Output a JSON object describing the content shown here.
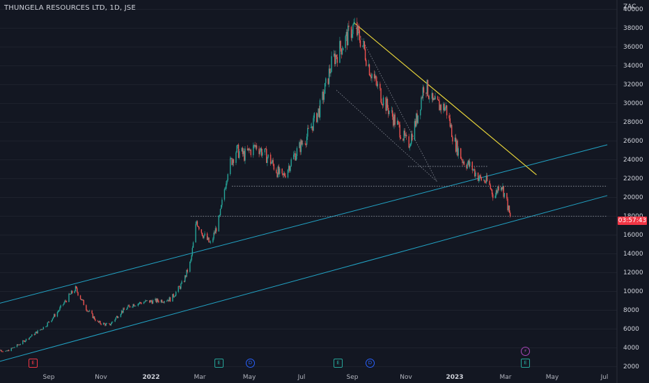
{
  "header": {
    "title": "THUNGELA RESOURCES LTD, 1D, JSE",
    "currency": "ZAC"
  },
  "colors": {
    "background": "#131722",
    "up": "#26a69a",
    "down": "#ef5350",
    "channel": "#22a6c8",
    "trendline": "#e6d33a",
    "text": "#d1d4dc",
    "price_tag": "#f23645"
  },
  "price_axis": {
    "ticks": [
      "40000",
      "38000",
      "36000",
      "34000",
      "32000",
      "30000",
      "28000",
      "26000",
      "24000",
      "22000",
      "20000",
      "18000",
      "16000",
      "14000",
      "12000",
      "10000",
      "8000",
      "6000",
      "4000",
      "2000"
    ]
  },
  "time_axis": {
    "ticks": [
      {
        "label": "Sep",
        "bold": false
      },
      {
        "label": "Nov",
        "bold": false
      },
      {
        "label": "2022",
        "bold": true
      },
      {
        "label": "Mar",
        "bold": false
      },
      {
        "label": "May",
        "bold": false
      },
      {
        "label": "Jul",
        "bold": false
      },
      {
        "label": "Sep",
        "bold": false
      },
      {
        "label": "Nov",
        "bold": false
      },
      {
        "label": "2023",
        "bold": true
      },
      {
        "label": "Mar",
        "bold": false
      },
      {
        "label": "May",
        "bold": false
      },
      {
        "label": "Jul",
        "bold": false
      }
    ]
  },
  "price_tag": {
    "countdown": "03:57:43"
  },
  "event_markers": [
    {
      "type": "earnings",
      "label": "E",
      "color": "#f23645"
    },
    {
      "type": "earnings",
      "label": "E",
      "color": "#26a69a"
    },
    {
      "type": "dividend",
      "label": "D",
      "color": "#2962ff"
    },
    {
      "type": "earnings",
      "label": "E",
      "color": "#26a69a"
    },
    {
      "type": "dividend",
      "label": "D",
      "color": "#2962ff"
    },
    {
      "type": "split",
      "label": "⚡",
      "color": "#ab47bc"
    },
    {
      "type": "earnings",
      "label": "E",
      "color": "#26a69a"
    }
  ],
  "chart_data": {
    "type": "candlestick",
    "title": "THUNGELA RESOURCES LTD, 1D, JSE",
    "currency": "ZAC",
    "ylim": [
      2000,
      40000
    ],
    "x_range": [
      "2021-07",
      "2023-07"
    ],
    "series": [
      {
        "points": [
          [
            "2021-07-05",
            3900
          ],
          [
            "2021-07-20",
            3600
          ],
          [
            "2021-08-05",
            4400
          ],
          [
            "2021-08-20",
            5300
          ],
          [
            "2021-09-05",
            6300
          ],
          [
            "2021-09-20",
            7800
          ],
          [
            "2021-10-05",
            9600
          ],
          [
            "2021-10-12",
            10300
          ],
          [
            "2021-10-25",
            8200
          ],
          [
            "2021-11-08",
            6700
          ],
          [
            "2021-11-22",
            6400
          ],
          [
            "2021-12-06",
            7800
          ],
          [
            "2021-12-20",
            8600
          ],
          [
            "2022-01-05",
            8900
          ],
          [
            "2022-01-20",
            9000
          ],
          [
            "2022-02-05",
            9200
          ],
          [
            "2022-02-20",
            11000
          ],
          [
            "2022-03-01",
            13200
          ],
          [
            "2022-03-08",
            17500
          ],
          [
            "2022-03-15",
            16200
          ],
          [
            "2022-03-25",
            15000
          ],
          [
            "2022-04-05",
            17800
          ],
          [
            "2022-04-15",
            23000
          ],
          [
            "2022-04-25",
            25000
          ],
          [
            "2022-05-05",
            24500
          ],
          [
            "2022-05-20",
            25500
          ],
          [
            "2022-06-05",
            24000
          ],
          [
            "2022-06-20",
            22000
          ],
          [
            "2022-07-05",
            24500
          ],
          [
            "2022-07-20",
            26500
          ],
          [
            "2022-08-05",
            29500
          ],
          [
            "2022-08-20",
            34500
          ],
          [
            "2022-09-01",
            36200
          ],
          [
            "2022-09-15",
            38200
          ],
          [
            "2022-09-25",
            36500
          ],
          [
            "2022-10-05",
            33500
          ],
          [
            "2022-10-20",
            30500
          ],
          [
            "2022-11-05",
            28000
          ],
          [
            "2022-11-20",
            25500
          ],
          [
            "2022-12-01",
            28500
          ],
          [
            "2022-12-10",
            32300
          ],
          [
            "2022-12-20",
            30000
          ],
          [
            "2023-01-05",
            29500
          ],
          [
            "2023-01-15",
            26000
          ],
          [
            "2023-01-25",
            24000
          ],
          [
            "2023-02-05",
            23200
          ],
          [
            "2023-02-15",
            22000
          ],
          [
            "2023-02-25",
            21600
          ],
          [
            "2023-03-05",
            20000
          ],
          [
            "2023-03-12",
            21800
          ],
          [
            "2023-03-20",
            19500
          ],
          [
            "2023-03-24",
            17800
          ]
        ]
      }
    ],
    "drawings": {
      "upper_channel": [
        [
          "2021-06-27",
          8400
        ],
        [
          "2023-07-20",
          25600
        ]
      ],
      "lower_channel": [
        [
          "2021-06-27",
          2200
        ],
        [
          "2023-07-20",
          20200
        ]
      ],
      "falling_trendline": [
        [
          "2022-09-15",
          38600
        ],
        [
          "2023-04-25",
          22400
        ]
      ],
      "triangle_upper": [
        [
          "2022-09-15",
          38500
        ],
        [
          "2022-12-25",
          21700
        ]
      ],
      "triangle_lower": [
        [
          "2022-08-25",
          31400
        ],
        [
          "2022-12-25",
          21700
        ]
      ],
      "support_levels": [
        {
          "value": 21200,
          "from": "2022-04-20",
          "to": "2023-07-20"
        },
        {
          "value": 18000,
          "from": "2022-03-01",
          "to": "2023-07-20"
        },
        {
          "value": 23300,
          "from": "2022-11-20",
          "to": "2023-02-25"
        }
      ]
    }
  }
}
